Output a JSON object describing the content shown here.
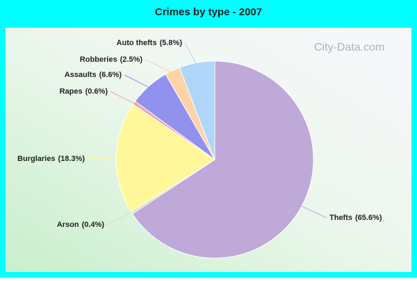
{
  "chart_data": {
    "type": "pie",
    "title": "Crimes by type - 2007",
    "categories": [
      "Thefts",
      "Arson",
      "Burglaries",
      "Rapes",
      "Assaults",
      "Robberies",
      "Auto thefts"
    ],
    "values": [
      65.6,
      0.4,
      18.3,
      0.6,
      6.6,
      2.5,
      5.8
    ],
    "value_labels": [
      "(65.6%)",
      "(0.4%)",
      "(18.3%)",
      "(0.6%)",
      "(6.6%)",
      "(2.5%)",
      "(5.8%)"
    ],
    "colors": [
      "#bfa9d9",
      "#cfe6b8",
      "#fff799",
      "#f3a3ab",
      "#9191ee",
      "#ffd3a8",
      "#afd6f8"
    ]
  },
  "watermark": "City-Data.com"
}
